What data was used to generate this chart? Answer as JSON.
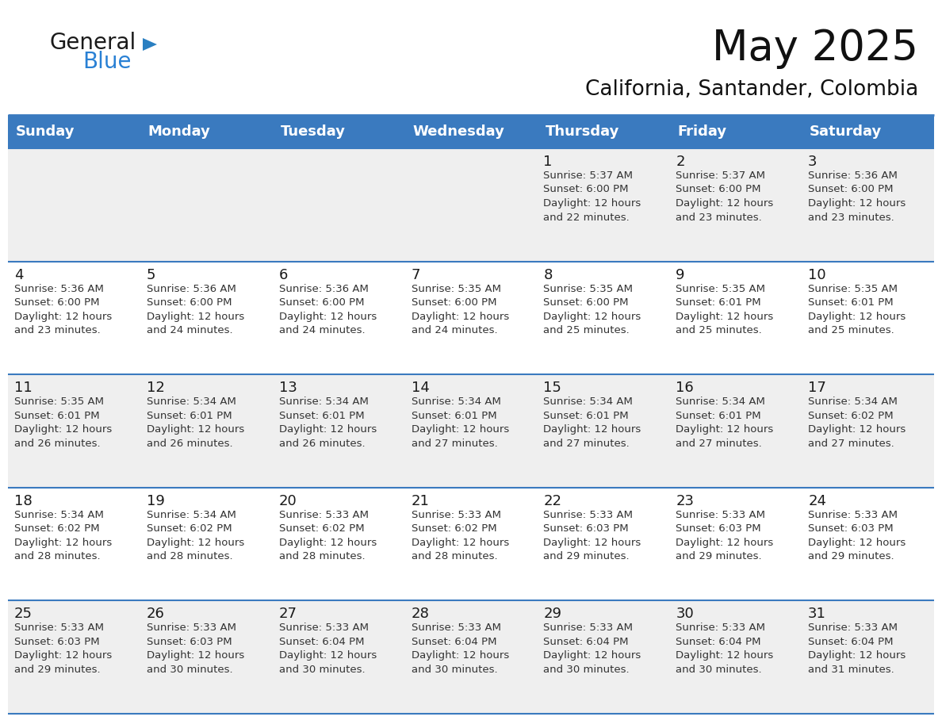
{
  "title": "May 2025",
  "subtitle": "California, Santander, Colombia",
  "header_bg": "#3a7abf",
  "header_text_color": "#ffffff",
  "days_of_week": [
    "Sunday",
    "Monday",
    "Tuesday",
    "Wednesday",
    "Thursday",
    "Friday",
    "Saturday"
  ],
  "row_bg_odd": "#efefef",
  "row_bg_even": "#ffffff",
  "cell_text_color": "#333333",
  "day_number_color": "#1a1a1a",
  "grid_line_color": "#3a7abf",
  "calendar_data": [
    [
      {
        "day": null,
        "text": ""
      },
      {
        "day": null,
        "text": ""
      },
      {
        "day": null,
        "text": ""
      },
      {
        "day": null,
        "text": ""
      },
      {
        "day": 1,
        "text": "Sunrise: 5:37 AM\nSunset: 6:00 PM\nDaylight: 12 hours\nand 22 minutes."
      },
      {
        "day": 2,
        "text": "Sunrise: 5:37 AM\nSunset: 6:00 PM\nDaylight: 12 hours\nand 23 minutes."
      },
      {
        "day": 3,
        "text": "Sunrise: 5:36 AM\nSunset: 6:00 PM\nDaylight: 12 hours\nand 23 minutes."
      }
    ],
    [
      {
        "day": 4,
        "text": "Sunrise: 5:36 AM\nSunset: 6:00 PM\nDaylight: 12 hours\nand 23 minutes."
      },
      {
        "day": 5,
        "text": "Sunrise: 5:36 AM\nSunset: 6:00 PM\nDaylight: 12 hours\nand 24 minutes."
      },
      {
        "day": 6,
        "text": "Sunrise: 5:36 AM\nSunset: 6:00 PM\nDaylight: 12 hours\nand 24 minutes."
      },
      {
        "day": 7,
        "text": "Sunrise: 5:35 AM\nSunset: 6:00 PM\nDaylight: 12 hours\nand 24 minutes."
      },
      {
        "day": 8,
        "text": "Sunrise: 5:35 AM\nSunset: 6:00 PM\nDaylight: 12 hours\nand 25 minutes."
      },
      {
        "day": 9,
        "text": "Sunrise: 5:35 AM\nSunset: 6:01 PM\nDaylight: 12 hours\nand 25 minutes."
      },
      {
        "day": 10,
        "text": "Sunrise: 5:35 AM\nSunset: 6:01 PM\nDaylight: 12 hours\nand 25 minutes."
      }
    ],
    [
      {
        "day": 11,
        "text": "Sunrise: 5:35 AM\nSunset: 6:01 PM\nDaylight: 12 hours\nand 26 minutes."
      },
      {
        "day": 12,
        "text": "Sunrise: 5:34 AM\nSunset: 6:01 PM\nDaylight: 12 hours\nand 26 minutes."
      },
      {
        "day": 13,
        "text": "Sunrise: 5:34 AM\nSunset: 6:01 PM\nDaylight: 12 hours\nand 26 minutes."
      },
      {
        "day": 14,
        "text": "Sunrise: 5:34 AM\nSunset: 6:01 PM\nDaylight: 12 hours\nand 27 minutes."
      },
      {
        "day": 15,
        "text": "Sunrise: 5:34 AM\nSunset: 6:01 PM\nDaylight: 12 hours\nand 27 minutes."
      },
      {
        "day": 16,
        "text": "Sunrise: 5:34 AM\nSunset: 6:01 PM\nDaylight: 12 hours\nand 27 minutes."
      },
      {
        "day": 17,
        "text": "Sunrise: 5:34 AM\nSunset: 6:02 PM\nDaylight: 12 hours\nand 27 minutes."
      }
    ],
    [
      {
        "day": 18,
        "text": "Sunrise: 5:34 AM\nSunset: 6:02 PM\nDaylight: 12 hours\nand 28 minutes."
      },
      {
        "day": 19,
        "text": "Sunrise: 5:34 AM\nSunset: 6:02 PM\nDaylight: 12 hours\nand 28 minutes."
      },
      {
        "day": 20,
        "text": "Sunrise: 5:33 AM\nSunset: 6:02 PM\nDaylight: 12 hours\nand 28 minutes."
      },
      {
        "day": 21,
        "text": "Sunrise: 5:33 AM\nSunset: 6:02 PM\nDaylight: 12 hours\nand 28 minutes."
      },
      {
        "day": 22,
        "text": "Sunrise: 5:33 AM\nSunset: 6:03 PM\nDaylight: 12 hours\nand 29 minutes."
      },
      {
        "day": 23,
        "text": "Sunrise: 5:33 AM\nSunset: 6:03 PM\nDaylight: 12 hours\nand 29 minutes."
      },
      {
        "day": 24,
        "text": "Sunrise: 5:33 AM\nSunset: 6:03 PM\nDaylight: 12 hours\nand 29 minutes."
      }
    ],
    [
      {
        "day": 25,
        "text": "Sunrise: 5:33 AM\nSunset: 6:03 PM\nDaylight: 12 hours\nand 29 minutes."
      },
      {
        "day": 26,
        "text": "Sunrise: 5:33 AM\nSunset: 6:03 PM\nDaylight: 12 hours\nand 30 minutes."
      },
      {
        "day": 27,
        "text": "Sunrise: 5:33 AM\nSunset: 6:04 PM\nDaylight: 12 hours\nand 30 minutes."
      },
      {
        "day": 28,
        "text": "Sunrise: 5:33 AM\nSunset: 6:04 PM\nDaylight: 12 hours\nand 30 minutes."
      },
      {
        "day": 29,
        "text": "Sunrise: 5:33 AM\nSunset: 6:04 PM\nDaylight: 12 hours\nand 30 minutes."
      },
      {
        "day": 30,
        "text": "Sunrise: 5:33 AM\nSunset: 6:04 PM\nDaylight: 12 hours\nand 30 minutes."
      },
      {
        "day": 31,
        "text": "Sunrise: 5:33 AM\nSunset: 6:04 PM\nDaylight: 12 hours\nand 31 minutes."
      }
    ]
  ],
  "logo_general_color": "#1a1a1a",
  "logo_blue_color": "#2980d4",
  "logo_triangle_color": "#2a7fc1",
  "title_fontsize": 38,
  "subtitle_fontsize": 19,
  "header_fontsize": 13,
  "day_number_fontsize": 13,
  "cell_text_fontsize": 9.5
}
